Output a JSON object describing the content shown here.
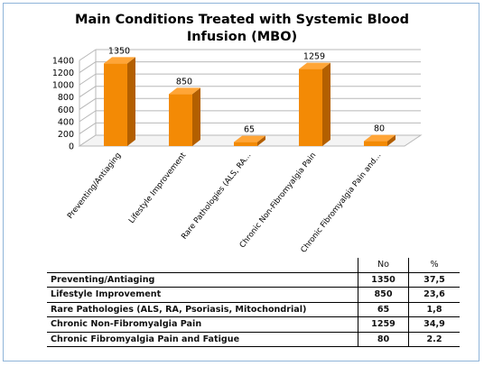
{
  "chart_data": {
    "type": "bar",
    "title": "Main Conditions Treated with Systemic Blood Infusion (MBO)",
    "title_lines": [
      "Main Conditions Treated with Systemic Blood",
      "Infusion (MBO)"
    ],
    "categories": [
      "Preventing/Antiaging",
      "Lifestyle Improvement",
      "Rare Pathologies (ALS, RA...",
      "Chronic Non-Fibromyalgia Pain",
      "Chronic Fibromyalgia Pain and..."
    ],
    "values": [
      1350,
      850,
      65,
      1259,
      80
    ],
    "data_labels": [
      "1350",
      "850",
      "65",
      "1259",
      "80"
    ],
    "ylim": [
      0,
      1400
    ],
    "yticks": [
      "0",
      "200",
      "400",
      "600",
      "800",
      "1000",
      "1200",
      "1400"
    ],
    "grid": true,
    "legend": "none",
    "style": "3d-column"
  },
  "colors": {
    "bar_front": "#f38a05",
    "bar_side": "#b35f00",
    "bar_top": "#ffa537",
    "grid": "#b8b8b8",
    "frame_border": "#8fb4d9"
  },
  "table": {
    "headers": [
      "",
      "No",
      "%"
    ],
    "rows": [
      {
        "name": "Preventing/Antiaging",
        "no": "1350",
        "pct": "37,5"
      },
      {
        "name": "Lifestyle Improvement",
        "no": "850",
        "pct": "23,6"
      },
      {
        "name": "Rare Pathologies (ALS, RA, Psoriasis, Mitochondrial)",
        "no": "65",
        "pct": "1,8"
      },
      {
        "name": "Chronic Non-Fibromyalgia Pain",
        "no": "1259",
        "pct": "34,9"
      },
      {
        "name": "Chronic Fibromyalgia Pain and Fatigue",
        "no": "80",
        "pct": "2.2"
      }
    ]
  }
}
